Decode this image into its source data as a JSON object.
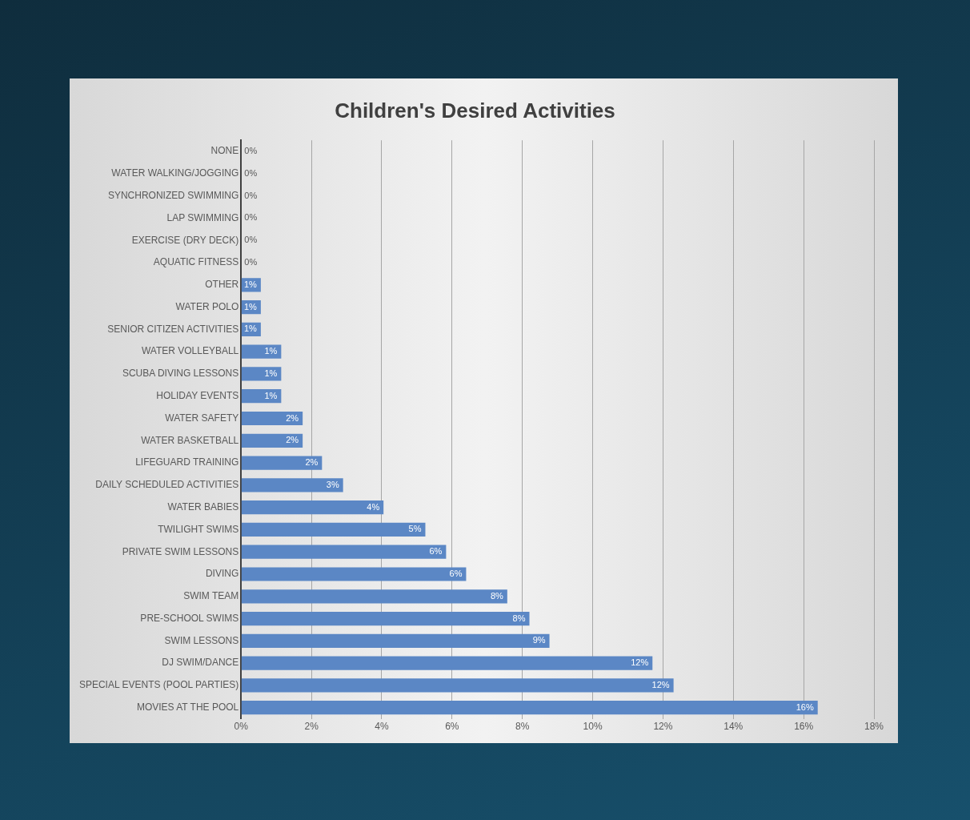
{
  "chart_data": {
    "type": "bar",
    "orientation": "horizontal",
    "title": "Children's Desired Activities",
    "categories": [
      "NONE",
      "WATER WALKING/JOGGING",
      "SYNCHRONIZED SWIMMING",
      "LAP SWIMMING",
      "EXERCISE (DRY DECK)",
      "AQUATIC FITNESS",
      "OTHER",
      "WATER POLO",
      "SENIOR CITIZEN ACTIVITIES",
      "WATER VOLLEYBALL",
      "SCUBA DIVING LESSONS",
      "HOLIDAY EVENTS",
      "WATER SAFETY",
      "WATER BASKETBALL",
      "LIFEGUARD TRAINING",
      "DAILY SCHEDULED ACTIVITIES",
      "WATER BABIES",
      "TWILIGHT SWIMS",
      "PRIVATE SWIM LESSONS",
      "DIVING",
      "SWIM TEAM",
      "PRE-SCHOOL SWIMS",
      "SWIM LESSONS",
      "DJ SWIM/DANCE",
      "SPECIAL EVENTS (POOL PARTIES)",
      "MOVIES AT THE POOL"
    ],
    "values": [
      0,
      0,
      0,
      0,
      0,
      0,
      0.56,
      0.56,
      0.56,
      1.14,
      1.14,
      1.14,
      1.75,
      1.75,
      2.3,
      2.9,
      4.05,
      5.24,
      5.83,
      6.4,
      7.57,
      8.2,
      8.77,
      11.7,
      12.3,
      16.4
    ],
    "value_labels": [
      "0%",
      "0%",
      "0%",
      "0%",
      "0%",
      "0%",
      "1%",
      "1%",
      "1%",
      "1%",
      "1%",
      "1%",
      "2%",
      "2%",
      "2%",
      "3%",
      "4%",
      "5%",
      "6%",
      "6%",
      "8%",
      "8%",
      "9%",
      "12%",
      "12%",
      "16%"
    ],
    "color": "#5b87c5",
    "xlim": [
      0,
      18
    ],
    "xticks": [
      {
        "value": 0,
        "label": "0%"
      },
      {
        "value": 2,
        "label": "2%"
      },
      {
        "value": 4,
        "label": "4%"
      },
      {
        "value": 6,
        "label": "6%"
      },
      {
        "value": 8,
        "label": "8%"
      },
      {
        "value": 10,
        "label": "10%"
      },
      {
        "value": 12,
        "label": "12%"
      },
      {
        "value": 14,
        "label": "14%"
      },
      {
        "value": 16,
        "label": "16%"
      },
      {
        "value": 18,
        "label": "18%"
      }
    ],
    "grid": "x",
    "legend": false
  }
}
